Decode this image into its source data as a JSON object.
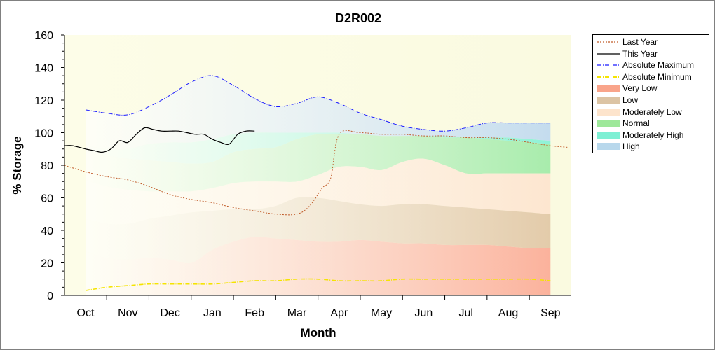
{
  "chart_data": {
    "type": "area",
    "title": "D2R002",
    "xlabel": "Month",
    "ylabel": "% Storage",
    "ylim": [
      0,
      160
    ],
    "yticks": [
      0,
      20,
      40,
      60,
      80,
      100,
      120,
      140,
      160
    ],
    "categories": [
      "Oct",
      "Nov",
      "Dec",
      "Jan",
      "Feb",
      "Mar",
      "Apr",
      "May",
      "Jun",
      "Jul",
      "Aug",
      "Sep"
    ],
    "grid": false,
    "legend_position": "right",
    "bands": {
      "x": [
        0,
        0.5,
        1,
        1.5,
        2,
        2.5,
        3,
        3.5,
        4,
        4.5,
        5,
        5.5,
        6,
        6.5,
        7,
        7.5,
        8,
        8.5,
        9,
        9.5,
        10,
        10.5,
        11
      ],
      "very_low_upper": [
        27,
        23,
        22,
        23,
        22,
        20,
        28,
        33,
        36,
        35,
        34,
        33,
        33,
        34,
        33,
        32,
        32,
        31,
        31,
        31,
        30,
        29,
        29
      ],
      "low_upper": [
        47,
        44,
        44,
        47,
        49,
        51,
        52,
        53,
        53,
        55,
        60,
        60,
        58,
        56,
        55,
        56,
        56,
        55,
        54,
        53,
        52,
        51,
        50
      ],
      "moderately_low_upper": [
        71,
        67,
        65,
        64,
        64,
        64,
        66,
        69,
        70,
        70,
        70,
        74,
        79,
        79,
        77,
        82,
        84,
        80,
        75,
        75,
        75,
        75,
        75
      ],
      "normal_upper": [
        89,
        86,
        84,
        83,
        82,
        81,
        82,
        88,
        90,
        91,
        96,
        99,
        99,
        99,
        98,
        98,
        98,
        97,
        97,
        96,
        95,
        94,
        93
      ],
      "moderately_high_upper": [
        92,
        90,
        90,
        93,
        94,
        94,
        96,
        99,
        100,
        100,
        100,
        100,
        100,
        99,
        98,
        98,
        98,
        98,
        97,
        97,
        97,
        96,
        95
      ],
      "high_upper": [
        114,
        112,
        111,
        116,
        123,
        131,
        135,
        129,
        121,
        116,
        118,
        122,
        118,
        112,
        108,
        104,
        102,
        101,
        103,
        106,
        106,
        106,
        106
      ]
    },
    "series": [
      {
        "name": "Last Year",
        "color": "#c05a28",
        "style": "dotted",
        "x": [
          -0.5,
          0,
          0.5,
          1,
          1.5,
          2,
          2.5,
          3,
          3.5,
          4,
          4.5,
          5,
          5.3,
          5.6,
          5.8,
          6,
          6.5,
          7,
          7.5,
          8,
          8.5,
          9,
          9.5,
          10,
          10.5,
          11,
          11.4
        ],
        "values": [
          80,
          76,
          73,
          71,
          67,
          62,
          59,
          57,
          54,
          52,
          50,
          50,
          55,
          66,
          72,
          99,
          100,
          99,
          99,
          98,
          98,
          97,
          97,
          96,
          94,
          92,
          91
        ]
      },
      {
        "name": "This Year",
        "color": "#000000",
        "style": "solid",
        "x": [
          -0.5,
          -0.3,
          0,
          0.2,
          0.4,
          0.6,
          0.8,
          1.0,
          1.2,
          1.4,
          1.6,
          1.8,
          2.0,
          2.2,
          2.4,
          2.6,
          2.8,
          3.0,
          3.2,
          3.4,
          3.6,
          3.8,
          4.0
        ],
        "values": [
          92,
          92,
          90,
          89,
          88,
          90,
          95,
          94,
          99,
          103,
          102,
          101,
          101,
          101,
          100,
          99,
          99,
          96,
          94,
          93,
          99,
          101,
          101
        ]
      },
      {
        "name": "Absolute Maximum",
        "color": "#1a1aff",
        "style": "dashdot",
        "x": [
          0,
          0.5,
          1,
          1.5,
          2,
          2.5,
          3,
          3.5,
          4,
          4.5,
          5,
          5.5,
          6,
          6.5,
          7,
          7.5,
          8,
          8.5,
          9,
          9.5,
          10,
          10.5,
          11
        ],
        "values": [
          114,
          112,
          111,
          116,
          123,
          131,
          135,
          129,
          121,
          116,
          118,
          122,
          118,
          112,
          108,
          104,
          102,
          101,
          103,
          106,
          106,
          106,
          106
        ]
      },
      {
        "name": "Absolute Minimum",
        "color": "#f5e400",
        "style": "dashdot",
        "x": [
          0,
          0.5,
          1,
          1.5,
          2,
          2.5,
          3,
          3.5,
          4,
          4.5,
          5,
          5.5,
          6,
          6.5,
          7,
          7.5,
          8,
          8.5,
          9,
          9.5,
          10,
          10.5,
          11
        ],
        "values": [
          3,
          5,
          6,
          7,
          7,
          7,
          7,
          8,
          9,
          9,
          10,
          10,
          9,
          9,
          9,
          10,
          10,
          10,
          10,
          10,
          10,
          10,
          9
        ]
      }
    ],
    "legend": [
      {
        "label": "Last Year",
        "kind": "line",
        "color": "#c05a28",
        "dash": "2,2"
      },
      {
        "label": "This Year",
        "kind": "line",
        "color": "#000000",
        "dash": ""
      },
      {
        "label": "Absolute Maximum",
        "kind": "line",
        "color": "#1a1aff",
        "dash": "6,2,1,2"
      },
      {
        "label": "Absolute Minimum",
        "kind": "line",
        "color": "#f5e400",
        "dash": "6,2,1,2"
      },
      {
        "label": "Very Low",
        "kind": "fill",
        "color": "#f9a48a"
      },
      {
        "label": "Low",
        "kind": "fill",
        "color": "#dcc4a4"
      },
      {
        "label": "Moderately Low",
        "kind": "fill",
        "color": "#fde4cc"
      },
      {
        "label": "Normal",
        "kind": "fill",
        "color": "#9ee89a"
      },
      {
        "label": "Moderately High",
        "kind": "fill",
        "color": "#7ef0d4"
      },
      {
        "label": "High",
        "kind": "fill",
        "color": "#b8d8ec"
      }
    ],
    "colors": {
      "very_low": "#fbb29c",
      "low": "#e3cbaa",
      "moderately_low": "#fde6d0",
      "normal": "#a8ecac",
      "moderately_high": "#8ff2d6",
      "high": "#c4dcee",
      "plot_bg_left": "#fdfde8",
      "plot_bg_right": "#fafae0"
    }
  }
}
